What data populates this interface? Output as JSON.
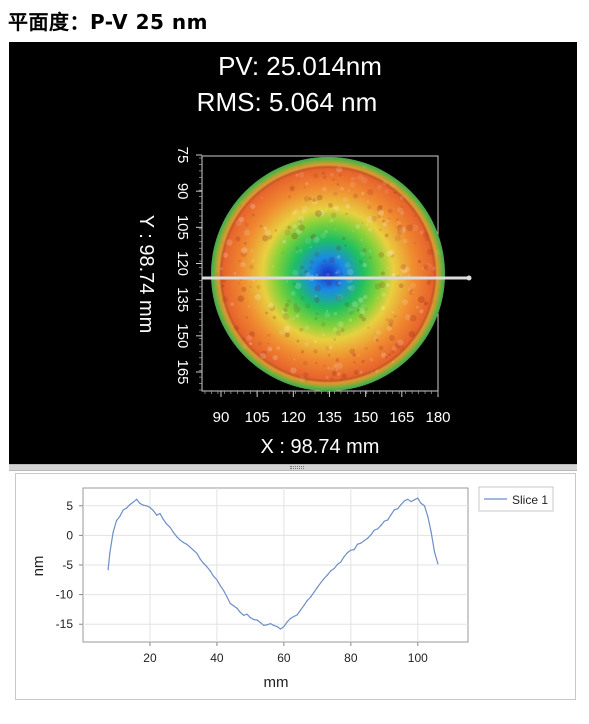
{
  "page": {
    "title": "平面度：P-V 25 nm"
  },
  "map": {
    "pv_label": "PV: 25.014nm",
    "rms_label": "RMS: 5.064  nm",
    "x_axis_label": "X : 98.74 mm",
    "y_axis_label": "Y : 98.74 mm",
    "x_ticks": [
      "90",
      "105",
      "120",
      "135",
      "150",
      "165",
      "180"
    ],
    "y_ticks": [
      "75",
      "90",
      "105",
      "120",
      "135",
      "150",
      "165"
    ],
    "colormap": [
      "#1a2ccc",
      "#1a8ae6",
      "#20c060",
      "#7fd13a",
      "#e8d040",
      "#f08a30",
      "#e04a2a"
    ],
    "slice_line_color": "#dcdcdc"
  },
  "chart_data": {
    "type": "line",
    "xlabel": "mm",
    "ylabel": "nm",
    "xlim": [
      0,
      115
    ],
    "ylim": [
      -18,
      8
    ],
    "x_ticks": [
      20,
      40,
      60,
      80,
      100
    ],
    "y_ticks": [
      5,
      0,
      -5,
      -10,
      -15
    ],
    "grid": true,
    "legend": "top-right",
    "series": [
      {
        "name": "Slice 1",
        "color": "#6b8fc7",
        "x": [
          7.5,
          8,
          9,
          10,
          11,
          12,
          13,
          14,
          15,
          16,
          17,
          18,
          19,
          20,
          21,
          22,
          23,
          24,
          25,
          26,
          27,
          28,
          29,
          30,
          31,
          32,
          33,
          34,
          35,
          36,
          37,
          38,
          39,
          40,
          41,
          42,
          43,
          44,
          45,
          46,
          47,
          48,
          49,
          50,
          51,
          52,
          53,
          54,
          55,
          56,
          57,
          58,
          59,
          60,
          61,
          62,
          63,
          64,
          65,
          66,
          67,
          68,
          69,
          70,
          71,
          72,
          73,
          74,
          75,
          76,
          77,
          78,
          79,
          80,
          81,
          82,
          83,
          84,
          85,
          86,
          87,
          88,
          89,
          90,
          91,
          92,
          93,
          94,
          95,
          96,
          97,
          98,
          99,
          100,
          101,
          102,
          103,
          104,
          105,
          106
        ],
        "values": [
          -5.8,
          -3,
          0.5,
          2.5,
          3.2,
          4.3,
          4.6,
          5.2,
          5.6,
          6.1,
          5.4,
          5.1,
          5.0,
          4.7,
          4.2,
          3.4,
          3.7,
          2.7,
          1.9,
          1.4,
          0.5,
          -0.2,
          -0.8,
          -1.2,
          -1.5,
          -2.0,
          -2.5,
          -3.0,
          -4.0,
          -4.7,
          -5.3,
          -6.0,
          -6.9,
          -7.5,
          -8.5,
          -9.3,
          -10.4,
          -11.5,
          -11.9,
          -12.3,
          -13.0,
          -13.5,
          -13.3,
          -13.9,
          -14.2,
          -14.3,
          -14.7,
          -15.2,
          -15.1,
          -14.9,
          -15.2,
          -15.4,
          -15.8,
          -15.4,
          -14.6,
          -14.0,
          -13.7,
          -13.4,
          -12.6,
          -11.8,
          -11.0,
          -10.4,
          -9.6,
          -8.8,
          -8.0,
          -7.3,
          -6.7,
          -6.0,
          -5.6,
          -4.9,
          -4.5,
          -3.6,
          -2.9,
          -2.5,
          -2.4,
          -1.5,
          -1.3,
          -0.9,
          -0.5,
          0.1,
          0.9,
          1.1,
          1.7,
          2.4,
          2.6,
          3.5,
          4.3,
          4.5,
          5.2,
          5.8,
          6.1,
          5.7,
          6.0,
          6.3,
          5.4,
          5.0,
          3.2,
          0.5,
          -2.8,
          -4.8
        ]
      }
    ]
  }
}
